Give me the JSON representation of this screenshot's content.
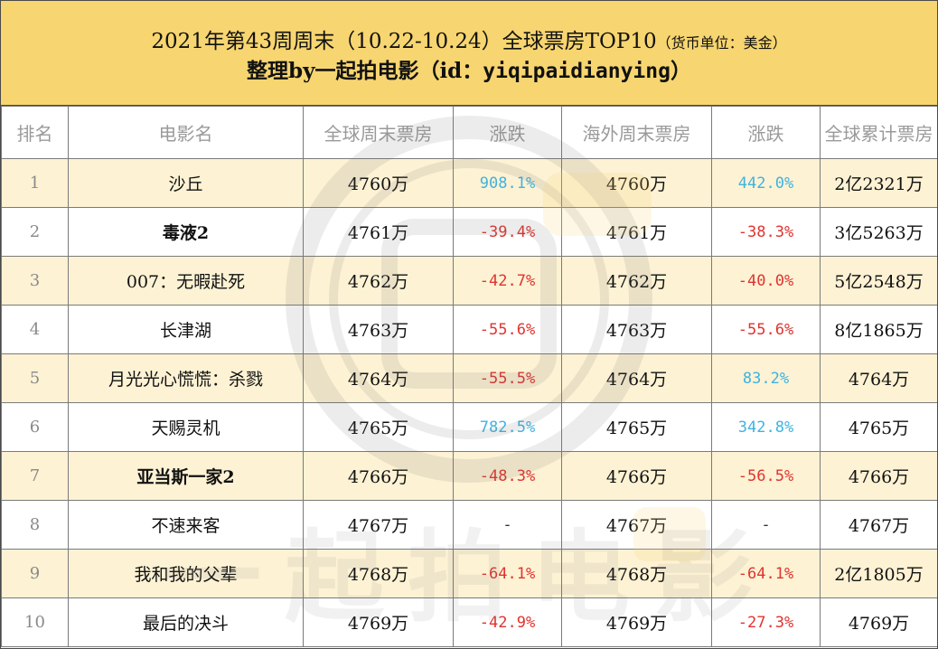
{
  "header": {
    "title": "2021年第43周周末（10.22-10.24）全球票房TOP10",
    "currency_note": "（货币单位：美金）",
    "subtitle_prefix": "整理by一起拍电影（id：",
    "subtitle_id": "yiqipaidianying",
    "subtitle_suffix": "）"
  },
  "table": {
    "columns": [
      "排名",
      "电影名",
      "全球周末票房",
      "涨跌",
      "海外周末票房",
      "涨跌",
      "全球累计票房"
    ],
    "rows": [
      {
        "rank": "1",
        "title": "沙丘",
        "global_weekend": "4760万",
        "global_change": "908.1%",
        "overseas_weekend": "4760万",
        "overseas_change": "442.0%",
        "cumulative": "2亿2321万"
      },
      {
        "rank": "2",
        "title": "毒液2",
        "global_weekend": "4761万",
        "global_change": "-39.4%",
        "overseas_weekend": "4761万",
        "overseas_change": "-38.3%",
        "cumulative": "3亿5263万"
      },
      {
        "rank": "3",
        "title": "007：无暇赴死",
        "global_weekend": "4762万",
        "global_change": "-42.7%",
        "overseas_weekend": "4762万",
        "overseas_change": "-40.0%",
        "cumulative": "5亿2548万"
      },
      {
        "rank": "4",
        "title": "长津湖",
        "global_weekend": "4763万",
        "global_change": "-55.6%",
        "overseas_weekend": "4763万",
        "overseas_change": "-55.6%",
        "cumulative": "8亿1865万"
      },
      {
        "rank": "5",
        "title": "月光光心慌慌：杀戮",
        "global_weekend": "4764万",
        "global_change": "-55.5%",
        "overseas_weekend": "4764万",
        "overseas_change": "83.2%",
        "cumulative": "4764万"
      },
      {
        "rank": "6",
        "title": "天赐灵机",
        "global_weekend": "4765万",
        "global_change": "782.5%",
        "overseas_weekend": "4765万",
        "overseas_change": "342.8%",
        "cumulative": "4765万"
      },
      {
        "rank": "7",
        "title": "亚当斯一家2",
        "global_weekend": "4766万",
        "global_change": "-48.3%",
        "overseas_weekend": "4766万",
        "overseas_change": "-56.5%",
        "cumulative": "4766万"
      },
      {
        "rank": "8",
        "title": "不速来客",
        "global_weekend": "4767万",
        "global_change": "-",
        "overseas_weekend": "4767万",
        "overseas_change": "-",
        "cumulative": "4767万"
      },
      {
        "rank": "9",
        "title": "我和我的父辈",
        "global_weekend": "4768万",
        "global_change": "-64.1%",
        "overseas_weekend": "4768万",
        "overseas_change": "-64.1%",
        "cumulative": "2亿1805万"
      },
      {
        "rank": "10",
        "title": "最后的决斗",
        "global_weekend": "4769万",
        "global_change": "-42.9%",
        "overseas_weekend": "4769万",
        "overseas_change": "-27.3%",
        "cumulative": "4769万"
      }
    ]
  },
  "watermark": {
    "text": "一起拍电影"
  },
  "colors": {
    "header_bg": "#f7d570",
    "odd_row_bg": "#fceec8",
    "up": "#3fb3e0",
    "down": "#e0342f",
    "header_text": "#9a9a9a"
  }
}
